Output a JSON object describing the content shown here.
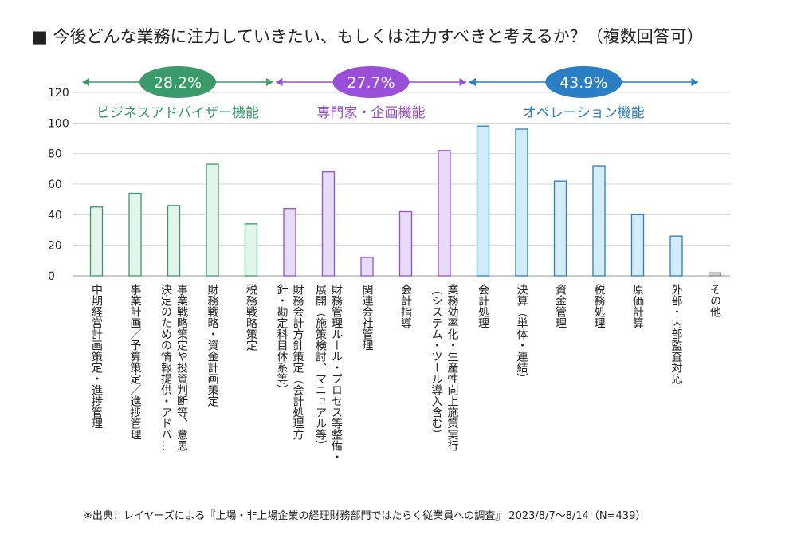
{
  "title": "■ 今後どんな業務に注力していきたい、もしくは注力すべきと考えるか？（複数回答可）",
  "footnote": "※出典：レイヤーズによる『上場・非上場企業の経理財務部門ではたらく従業員への調査』 2023/8/7〜8/14（N=439）",
  "chart_data": {
    "type": "bar",
    "ylim": [
      0,
      120
    ],
    "yticks": [
      0,
      20,
      40,
      60,
      80,
      100,
      120
    ],
    "grid": true,
    "groups": [
      {
        "pct": "28.2%",
        "label": "ビジネスアドバイザー機能",
        "color": "#3a9a6a",
        "fill": "#e3f4ea",
        "start": 0,
        "end": 4
      },
      {
        "pct": "27.7%",
        "label": "専門家・企画機能",
        "color": "#9a4fd8",
        "fill": "#e6dcf7",
        "start": 5,
        "end": 9
      },
      {
        "pct": "43.9%",
        "label": "オペレーション機能",
        "color": "#2a7fc4",
        "fill": "#d3ecf9",
        "start": 10,
        "end": 15
      }
    ],
    "categories": [
      [
        "中期経営計画策定・進捗管理"
      ],
      [
        "事業計画／予算策定／進捗管理"
      ],
      [
        "事業戦略策定や投資判断等、意思",
        "決定のための情報提供・アドバ…"
      ],
      [
        "財務戦略・資金計画策定"
      ],
      [
        "税務戦略策定"
      ],
      [
        "財務会計方針策定（会計処理方",
        "針・勘定科目体系等）"
      ],
      [
        "財務管理ルール・プロセス等整備・",
        "展開（施策検討、マニュアル等）"
      ],
      [
        "関連会社管理"
      ],
      [
        "会計指導"
      ],
      [
        "業務効率化・生産性向上施策実行",
        "（システム・ツール導入含む）"
      ],
      [
        "会計処理"
      ],
      [
        "決算（単体・連結）"
      ],
      [
        "資金管理"
      ],
      [
        "税務処理"
      ],
      [
        "原価計算"
      ],
      [
        "外部・内部監査対応"
      ],
      [
        "その他"
      ]
    ],
    "values": [
      45,
      54,
      46,
      73,
      34,
      44,
      68,
      12,
      42,
      82,
      98,
      96,
      62,
      72,
      40,
      26,
      2
    ]
  }
}
